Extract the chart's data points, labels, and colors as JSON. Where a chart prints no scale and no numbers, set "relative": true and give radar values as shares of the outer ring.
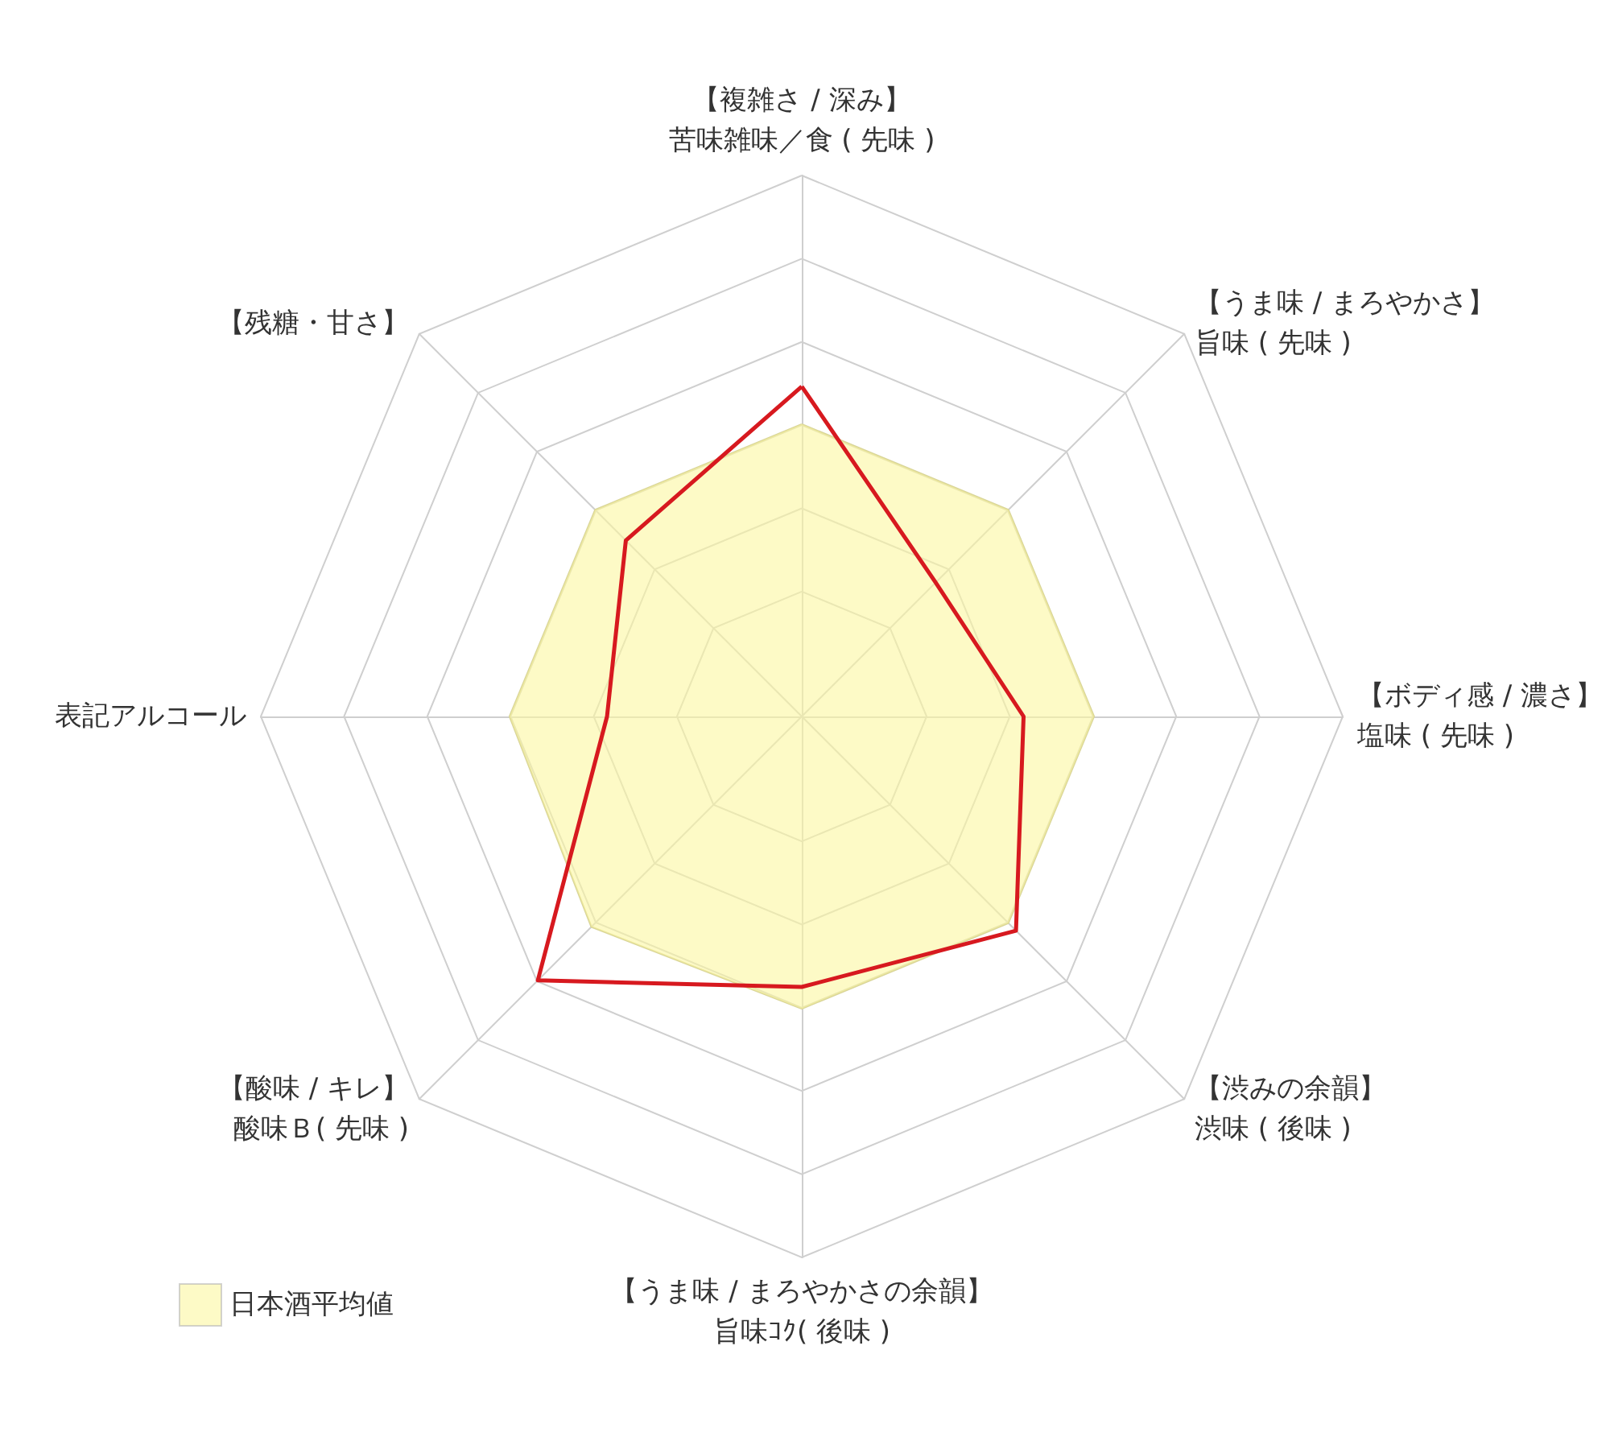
{
  "chart_data": {
    "type": "radar",
    "relative": true,
    "categories": [
      "【複雑さ / 深み】苦味雑味／食 ( 先味 )",
      "【うま味 / まろやかさ】旨味 ( 先味 )",
      "【ボディ感 / 濃さ】塩味 ( 先味 )",
      "【渋みの余韻】渋味 ( 後味 )",
      "【うま味 / まろやかさの余韻】旨味ｺｸ( 後味 )",
      "【酸味 / キレ】酸味Ｂ( 先味 )",
      "表記アルコール",
      "【残糖・甘さ】"
    ],
    "series": [
      {
        "name": "日本酒平均値",
        "type": "area",
        "color": "#fcf6a0",
        "values": [
          0.54,
          0.54,
          0.54,
          0.54,
          0.54,
          0.55,
          0.54,
          0.54
        ]
      },
      {
        "color": "#d7191f",
        "values": [
          0.61,
          0.35,
          0.41,
          0.56,
          0.5,
          0.69,
          0.36,
          0.46
        ]
      }
    ],
    "grid": true,
    "legend": "bottom left",
    "marker": "none"
  }
}
